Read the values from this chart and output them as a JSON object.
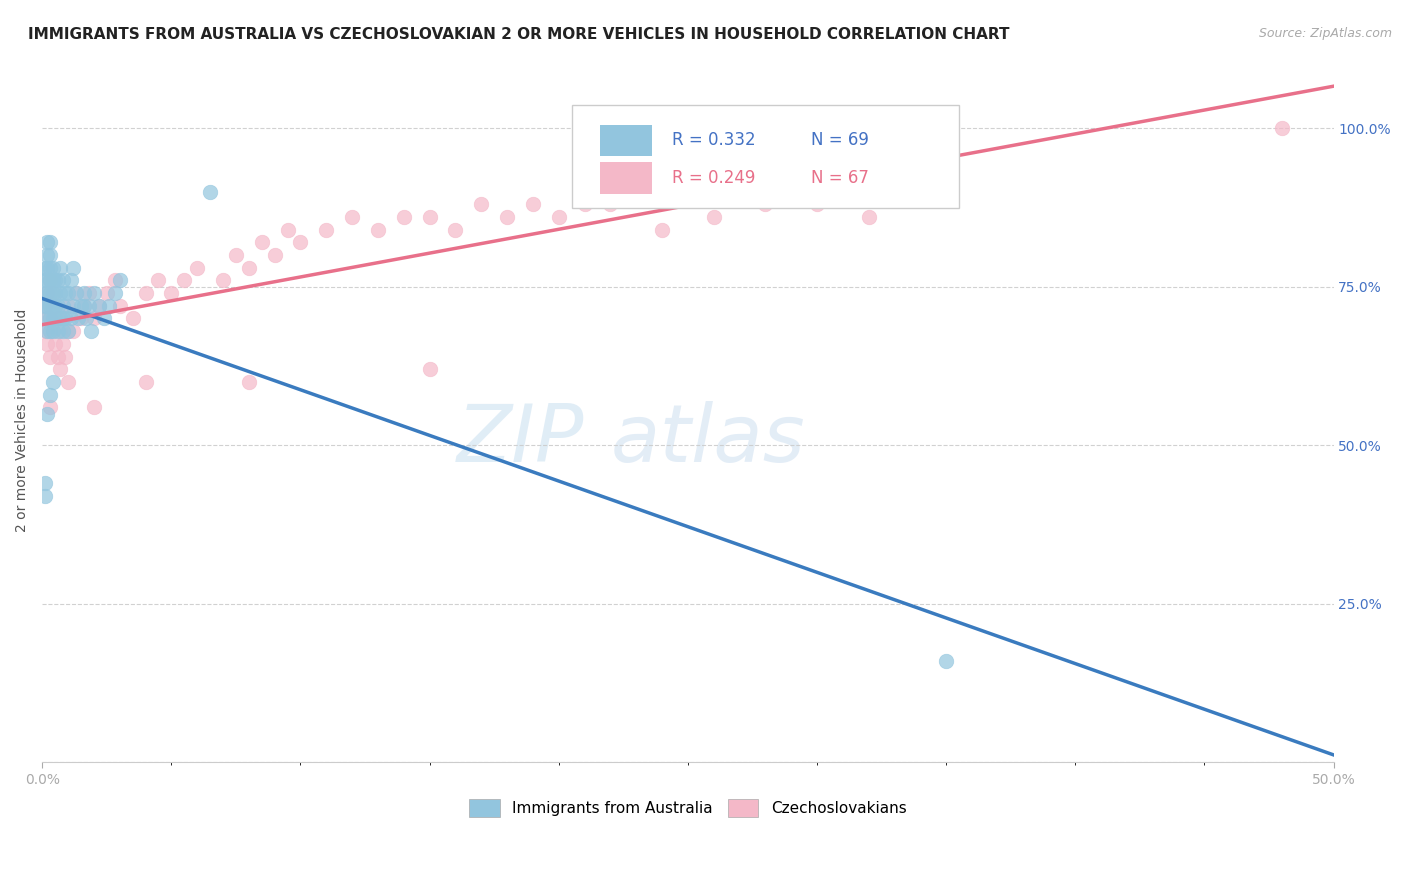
{
  "title": "IMMIGRANTS FROM AUSTRALIA VS CZECHOSLOVAKIAN 2 OR MORE VEHICLES IN HOUSEHOLD CORRELATION CHART",
  "source": "Source: ZipAtlas.com",
  "ylabel": "2 or more Vehicles in Household",
  "yticks_labels": [
    "",
    "25.0%",
    "50.0%",
    "75.0%",
    "100.0%"
  ],
  "ytick_vals": [
    0.0,
    0.25,
    0.5,
    0.75,
    1.0
  ],
  "xlim": [
    0.0,
    0.5
  ],
  "ylim": [
    0.0,
    1.08
  ],
  "legend_r1_text": "R = 0.332   N = 69",
  "legend_r2_text": "R = 0.249   N = 67",
  "legend_label1": "Immigrants from Australia",
  "legend_label2": "Czechoslovakians",
  "blue_color": "#92c5de",
  "pink_color": "#f4b8c8",
  "blue_line_color": "#3a7bbf",
  "pink_line_color": "#e8708a",
  "legend_r_color": "#4472c4",
  "legend_n_color": "#4472c4",
  "watermark_zip": "ZIP",
  "watermark_atlas": "atlas",
  "blue_x": [
    0.001,
    0.001,
    0.001,
    0.001,
    0.002,
    0.002,
    0.002,
    0.002,
    0.002,
    0.002,
    0.002,
    0.002,
    0.003,
    0.003,
    0.003,
    0.003,
    0.003,
    0.003,
    0.003,
    0.003,
    0.004,
    0.004,
    0.004,
    0.004,
    0.004,
    0.004,
    0.005,
    0.005,
    0.005,
    0.005,
    0.006,
    0.006,
    0.006,
    0.007,
    0.007,
    0.007,
    0.008,
    0.008,
    0.008,
    0.009,
    0.009,
    0.01,
    0.01,
    0.011,
    0.011,
    0.012,
    0.012,
    0.013,
    0.014,
    0.015,
    0.016,
    0.017,
    0.018,
    0.019,
    0.02,
    0.022,
    0.024,
    0.026,
    0.028,
    0.03,
    0.001,
    0.001,
    0.002,
    0.003,
    0.004,
    0.008,
    0.016,
    0.065,
    0.35
  ],
  "blue_y": [
    0.72,
    0.74,
    0.76,
    0.78,
    0.68,
    0.7,
    0.72,
    0.74,
    0.76,
    0.78,
    0.8,
    0.82,
    0.68,
    0.7,
    0.72,
    0.74,
    0.76,
    0.78,
    0.8,
    0.82,
    0.68,
    0.7,
    0.72,
    0.74,
    0.76,
    0.78,
    0.7,
    0.72,
    0.74,
    0.76,
    0.68,
    0.72,
    0.76,
    0.7,
    0.74,
    0.78,
    0.68,
    0.72,
    0.76,
    0.7,
    0.74,
    0.68,
    0.74,
    0.7,
    0.76,
    0.72,
    0.78,
    0.74,
    0.7,
    0.72,
    0.74,
    0.7,
    0.72,
    0.68,
    0.74,
    0.72,
    0.7,
    0.72,
    0.74,
    0.76,
    0.42,
    0.44,
    0.55,
    0.58,
    0.6,
    0.7,
    0.72,
    0.9,
    0.16
  ],
  "pink_x": [
    0.001,
    0.001,
    0.002,
    0.002,
    0.002,
    0.003,
    0.003,
    0.003,
    0.004,
    0.004,
    0.005,
    0.005,
    0.006,
    0.006,
    0.007,
    0.007,
    0.008,
    0.009,
    0.01,
    0.01,
    0.012,
    0.013,
    0.015,
    0.016,
    0.018,
    0.02,
    0.022,
    0.025,
    0.028,
    0.03,
    0.035,
    0.04,
    0.045,
    0.05,
    0.055,
    0.06,
    0.07,
    0.075,
    0.08,
    0.085,
    0.09,
    0.095,
    0.1,
    0.11,
    0.12,
    0.13,
    0.14,
    0.15,
    0.16,
    0.17,
    0.18,
    0.19,
    0.2,
    0.21,
    0.22,
    0.24,
    0.26,
    0.28,
    0.3,
    0.32,
    0.003,
    0.01,
    0.02,
    0.04,
    0.08,
    0.15,
    0.48
  ],
  "pink_y": [
    0.68,
    0.72,
    0.66,
    0.7,
    0.74,
    0.64,
    0.7,
    0.76,
    0.68,
    0.74,
    0.66,
    0.72,
    0.64,
    0.7,
    0.62,
    0.68,
    0.66,
    0.64,
    0.68,
    0.72,
    0.68,
    0.74,
    0.7,
    0.72,
    0.74,
    0.7,
    0.72,
    0.74,
    0.76,
    0.72,
    0.7,
    0.74,
    0.76,
    0.74,
    0.76,
    0.78,
    0.76,
    0.8,
    0.78,
    0.82,
    0.8,
    0.84,
    0.82,
    0.84,
    0.86,
    0.84,
    0.86,
    0.86,
    0.84,
    0.88,
    0.86,
    0.88,
    0.86,
    0.88,
    0.88,
    0.84,
    0.86,
    0.88,
    0.88,
    0.86,
    0.56,
    0.6,
    0.56,
    0.6,
    0.6,
    0.62,
    1.0
  ]
}
